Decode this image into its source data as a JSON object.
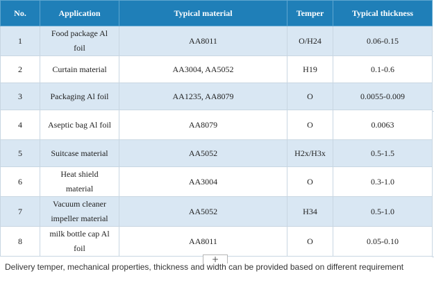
{
  "table": {
    "headers": [
      "No.",
      "Application",
      "Typical material",
      "Temper",
      "Typical thickness"
    ],
    "rows": [
      {
        "no": "1",
        "application": "Food package Al foil",
        "material": "AA8011",
        "temper": "O/H24",
        "thickness": "0.06-0.15"
      },
      {
        "no": "2",
        "application": "Curtain material",
        "material": "AA3004, AA5052",
        "temper": "H19",
        "thickness": "0.1-0.6"
      },
      {
        "no": "3",
        "application": "Packaging Al foil",
        "material": "AA1235, AA8079",
        "temper": "O",
        "thickness": "0.0055-0.009"
      },
      {
        "no": "4",
        "application": "Aseptic bag Al foil",
        "material": "AA8079",
        "temper": "O",
        "thickness": "0.0063"
      },
      {
        "no": "5",
        "application": "Suitcase material",
        "material": "AA5052",
        "temper": "H2x/H3x",
        "thickness": "0.5-1.5"
      },
      {
        "no": "6",
        "application": "Heat shield material",
        "material": "AA3004",
        "temper": "O",
        "thickness": "0.3-1.0"
      },
      {
        "no": "7",
        "application": "Vacuum cleaner impeller material",
        "material": "AA5052",
        "temper": "H34",
        "thickness": "0.5-1.0"
      },
      {
        "no": "8",
        "application": "milk bottle cap Al foil",
        "material": "AA8011",
        "temper": "O",
        "thickness": "0.05-0.10"
      }
    ]
  },
  "insert_button": {
    "label": "+"
  },
  "note": "Delivery temper, mechanical properties, thickness and width can be provided based on different requirement",
  "colors": {
    "header_bg": "#1f7fb8",
    "stripe_bg": "#d9e7f3",
    "border": "#c8d6e2"
  }
}
